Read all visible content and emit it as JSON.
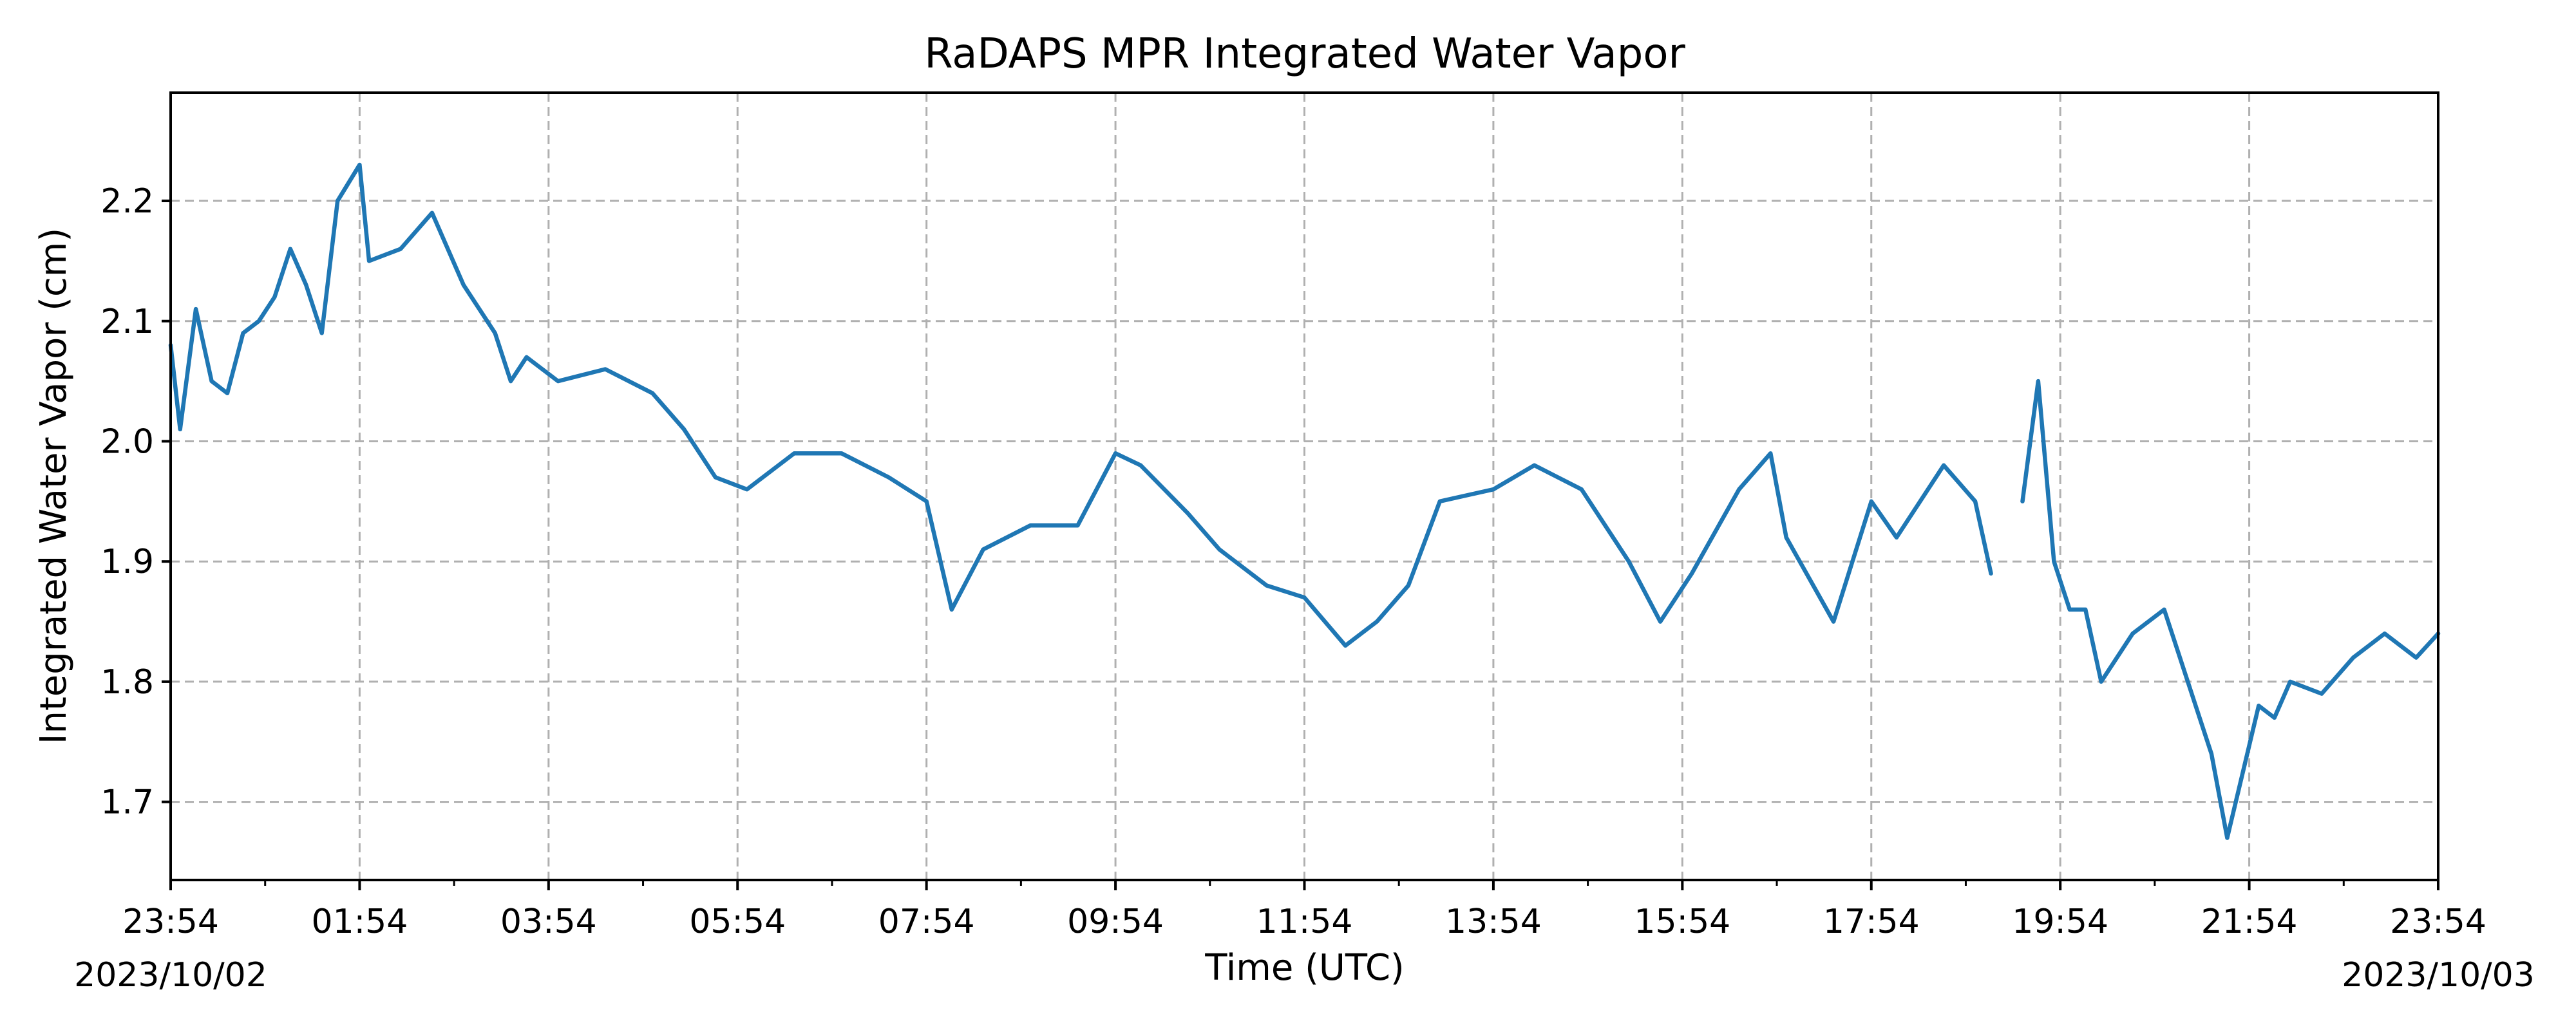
{
  "chart_data": {
    "type": "line",
    "title": "RaDAPS MPR Integrated Water Vapor",
    "xlabel": "Time (UTC)",
    "ylabel": "Integrated Water Vapor (cm)",
    "x_start_date_label": "2023/10/02",
    "x_end_date_label": "2023/10/03",
    "x_tick_labels": [
      "23:54",
      "01:54",
      "03:54",
      "05:54",
      "07:54",
      "09:54",
      "11:54",
      "13:54",
      "15:54",
      "17:54",
      "19:54",
      "21:54",
      "23:54"
    ],
    "y_ticks": [
      1.7,
      1.8,
      1.9,
      2.0,
      2.1,
      2.2
    ],
    "y_tick_labels": [
      "1.7",
      "1.8",
      "1.9",
      "2.0",
      "2.1",
      "2.2"
    ],
    "xlim": [
      "2023-10-02 23:54",
      "2023-10-03 23:54"
    ],
    "ylim": [
      1.635,
      2.29
    ],
    "grid": true,
    "line_color": "#1f77b4",
    "series": [
      {
        "segments": [
          {
            "x": [
              "2023-10-02 23:54",
              "2023-10-03 00:00",
              "2023-10-03 00:10",
              "2023-10-03 00:20",
              "2023-10-03 00:30",
              "2023-10-03 00:40",
              "2023-10-03 00:50",
              "2023-10-03 01:00",
              "2023-10-03 01:10",
              "2023-10-03 01:20",
              "2023-10-03 01:30",
              "2023-10-03 01:40",
              "2023-10-03 01:54",
              "2023-10-03 02:00",
              "2023-10-03 02:20",
              "2023-10-03 02:40",
              "2023-10-03 03:00",
              "2023-10-03 03:20",
              "2023-10-03 03:30",
              "2023-10-03 03:40",
              "2023-10-03 04:00",
              "2023-10-03 04:30",
              "2023-10-03 05:00",
              "2023-10-03 05:20",
              "2023-10-03 05:40",
              "2023-10-03 06:00",
              "2023-10-03 06:30",
              "2023-10-03 07:00",
              "2023-10-03 07:30",
              "2023-10-03 07:54",
              "2023-10-03 08:10",
              "2023-10-03 08:30",
              "2023-10-03 09:00",
              "2023-10-03 09:30",
              "2023-10-03 09:54",
              "2023-10-03 10:10",
              "2023-10-03 10:40",
              "2023-10-03 11:00",
              "2023-10-03 11:30",
              "2023-10-03 11:54",
              "2023-10-03 12:20",
              "2023-10-03 12:40",
              "2023-10-03 13:00",
              "2023-10-03 13:20",
              "2023-10-03 13:54",
              "2023-10-03 14:20",
              "2023-10-03 14:50",
              "2023-10-03 15:20",
              "2023-10-03 15:40",
              "2023-10-03 16:00",
              "2023-10-03 16:30",
              "2023-10-03 16:50",
              "2023-10-03 17:00",
              "2023-10-03 17:30",
              "2023-10-03 17:54",
              "2023-10-03 18:10",
              "2023-10-03 18:40",
              "2023-10-03 19:00",
              "2023-10-03 19:10"
            ],
            "y": [
              2.08,
              2.01,
              2.11,
              2.05,
              2.04,
              2.09,
              2.1,
              2.12,
              2.16,
              2.13,
              2.09,
              2.2,
              2.23,
              2.15,
              2.16,
              2.19,
              2.13,
              2.09,
              2.05,
              2.07,
              2.05,
              2.06,
              2.04,
              2.01,
              1.97,
              1.96,
              1.99,
              1.99,
              1.97,
              1.95,
              1.86,
              1.91,
              1.93,
              1.93,
              1.99,
              1.98,
              1.94,
              1.91,
              1.88,
              1.87,
              1.83,
              1.85,
              1.88,
              1.95,
              1.96,
              1.98,
              1.96,
              1.9,
              1.85,
              1.89,
              1.96,
              1.99,
              1.92,
              1.85,
              1.95,
              1.92,
              1.98,
              1.95,
              1.89
            ]
          },
          {
            "x": [
              "2023-10-03 19:30",
              "2023-10-03 19:40",
              "2023-10-03 19:50",
              "2023-10-03 20:00",
              "2023-10-03 20:10",
              "2023-10-03 20:20",
              "2023-10-03 20:40",
              "2023-10-03 21:00",
              "2023-10-03 21:10",
              "2023-10-03 21:20",
              "2023-10-03 21:30",
              "2023-10-03 21:40",
              "2023-10-03 22:00",
              "2023-10-03 22:10",
              "2023-10-03 22:20",
              "2023-10-03 22:40",
              "2023-10-03 23:00",
              "2023-10-03 23:20",
              "2023-10-03 23:40",
              "2023-10-03 23:54"
            ],
            "y": [
              1.95,
              2.05,
              1.9,
              1.86,
              1.86,
              1.8,
              1.84,
              1.86,
              1.82,
              1.78,
              1.74,
              1.67,
              1.78,
              1.77,
              1.8,
              1.79,
              1.82,
              1.84,
              1.82,
              1.84
            ]
          }
        ]
      }
    ]
  }
}
